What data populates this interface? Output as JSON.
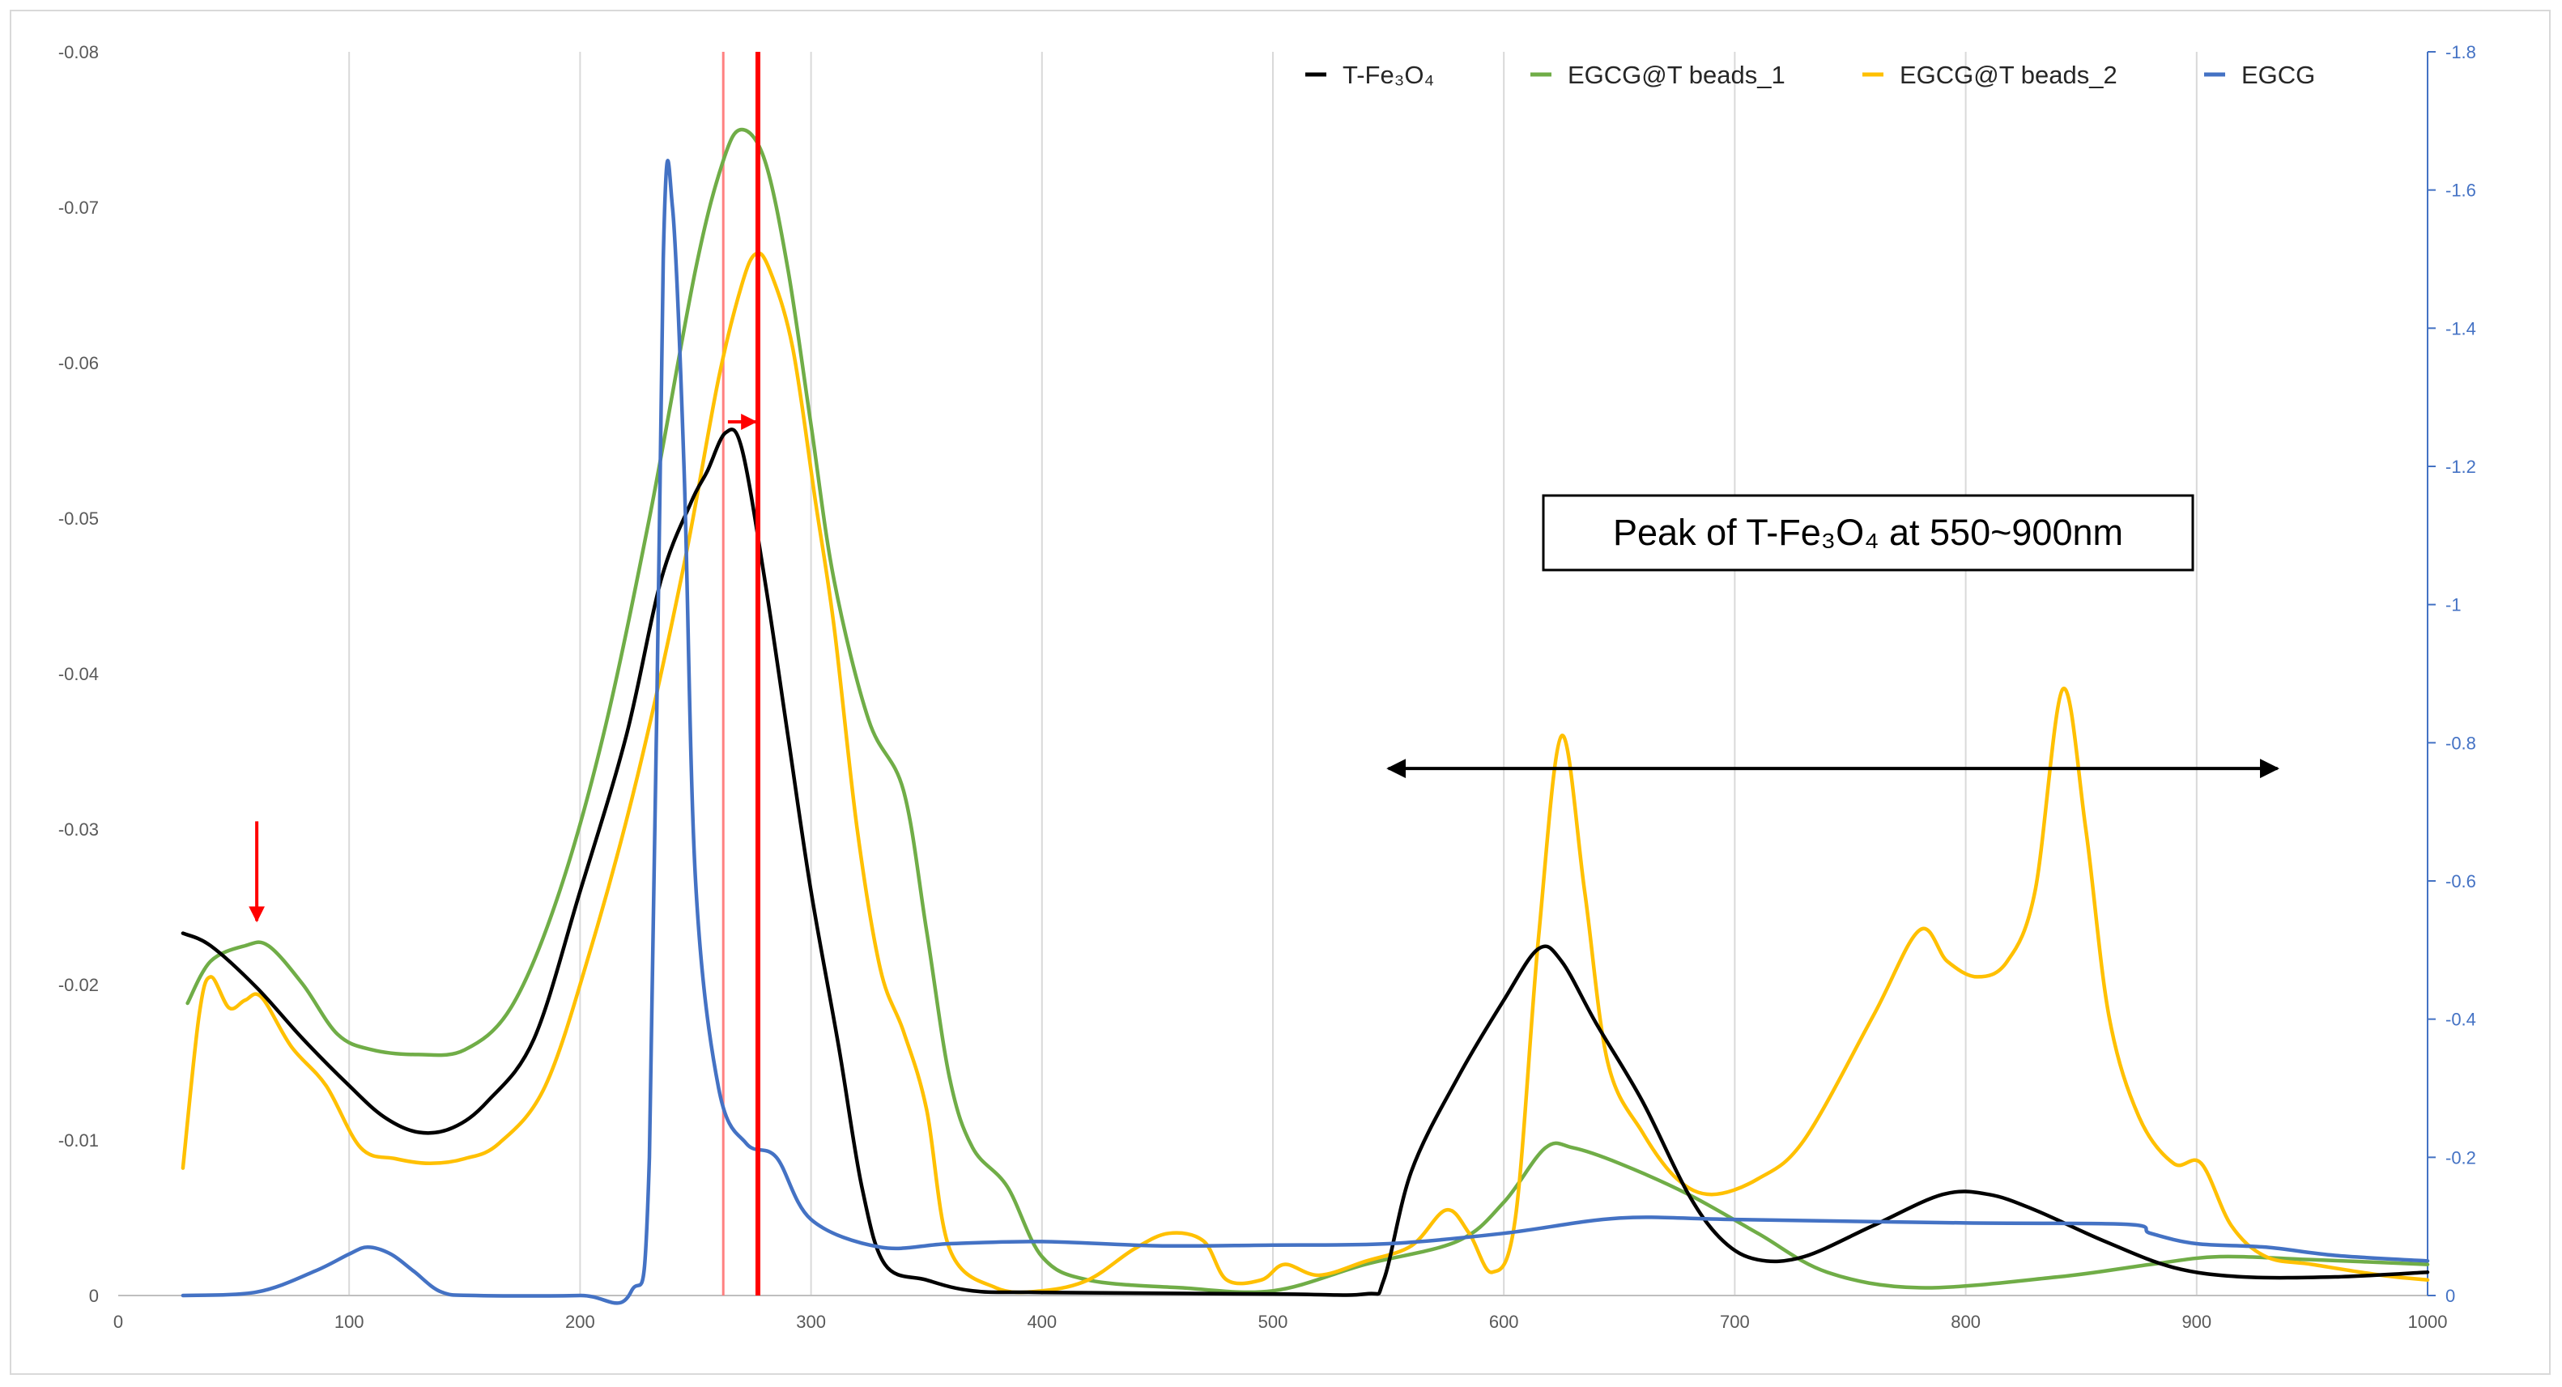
{
  "chart_data": {
    "type": "line",
    "x_axis": {
      "range": [
        0,
        1000
      ],
      "ticks": [
        0,
        100,
        200,
        300,
        400,
        500,
        600,
        700,
        800,
        900,
        1000
      ]
    },
    "y_axis_left": {
      "range": [
        0,
        -0.08
      ],
      "ticks": [
        0,
        -0.01,
        -0.02,
        -0.03,
        -0.04,
        -0.05,
        -0.06,
        -0.07,
        -0.08
      ],
      "tick_labels": [
        "0",
        "-0.01",
        "-0.02",
        "-0.03",
        "-0.04",
        "-0.05",
        "-0.06",
        "-0.07",
        "-0.08"
      ]
    },
    "y_axis_right": {
      "range": [
        0,
        -1.8
      ],
      "ticks": [
        0,
        -0.2,
        -0.4,
        -0.6,
        -0.8,
        -1,
        -1.2,
        -1.4,
        -1.6,
        -1.8
      ],
      "tick_labels": [
        "0",
        "-0.2",
        "-0.4",
        "-0.6",
        "-0.8",
        "-1",
        "-1.2",
        "-1.4",
        "-1.6",
        "-1.8"
      ],
      "color": "#4472c4"
    },
    "grid": "vertical",
    "legend_position": "top-right",
    "series": [
      {
        "name": "T-Fe₃O₄",
        "axis": "left",
        "color": "#000000",
        "points": [
          [
            28,
            -0.0233
          ],
          [
            40,
            -0.0225
          ],
          [
            60,
            -0.0198
          ],
          [
            80,
            -0.0165
          ],
          [
            100,
            -0.0135
          ],
          [
            115,
            -0.0115
          ],
          [
            130,
            -0.0105
          ],
          [
            145,
            -0.0108
          ],
          [
            160,
            -0.0125
          ],
          [
            180,
            -0.0165
          ],
          [
            200,
            -0.026
          ],
          [
            220,
            -0.036
          ],
          [
            235,
            -0.046
          ],
          [
            248,
            -0.051
          ],
          [
            255,
            -0.053
          ],
          [
            263,
            -0.0555
          ],
          [
            270,
            -0.0545
          ],
          [
            280,
            -0.046
          ],
          [
            290,
            -0.036
          ],
          [
            300,
            -0.026
          ],
          [
            312,
            -0.016
          ],
          [
            322,
            -0.007
          ],
          [
            332,
            -0.002
          ],
          [
            350,
            -0.001
          ],
          [
            370,
            -0.0003
          ],
          [
            400,
            -0.0002
          ],
          [
            500,
            -0.0001
          ],
          [
            540,
            -0.0001
          ],
          [
            548,
            -0.001
          ],
          [
            560,
            -0.008
          ],
          [
            580,
            -0.014
          ],
          [
            600,
            -0.019
          ],
          [
            615,
            -0.0223
          ],
          [
            625,
            -0.0215
          ],
          [
            640,
            -0.0175
          ],
          [
            660,
            -0.0125
          ],
          [
            680,
            -0.0065
          ],
          [
            695,
            -0.0035
          ],
          [
            710,
            -0.0023
          ],
          [
            730,
            -0.0025
          ],
          [
            760,
            -0.0045
          ],
          [
            790,
            -0.0065
          ],
          [
            810,
            -0.0065
          ],
          [
            830,
            -0.0055
          ],
          [
            860,
            -0.0035
          ],
          [
            890,
            -0.0018
          ],
          [
            920,
            -0.0012
          ],
          [
            960,
            -0.0012
          ],
          [
            1000,
            -0.0015
          ]
        ]
      },
      {
        "name": "EGCG@T beads_1",
        "axis": "left",
        "color": "#70ad47",
        "points": [
          [
            30,
            -0.0188
          ],
          [
            40,
            -0.0215
          ],
          [
            55,
            -0.0225
          ],
          [
            65,
            -0.0225
          ],
          [
            80,
            -0.02
          ],
          [
            95,
            -0.0168
          ],
          [
            110,
            -0.0158
          ],
          [
            130,
            -0.0155
          ],
          [
            150,
            -0.0158
          ],
          [
            170,
            -0.0185
          ],
          [
            190,
            -0.0255
          ],
          [
            210,
            -0.036
          ],
          [
            230,
            -0.05
          ],
          [
            250,
            -0.066
          ],
          [
            262,
            -0.073
          ],
          [
            270,
            -0.075
          ],
          [
            280,
            -0.073
          ],
          [
            290,
            -0.066
          ],
          [
            300,
            -0.056
          ],
          [
            310,
            -0.046
          ],
          [
            325,
            -0.037
          ],
          [
            340,
            -0.0325
          ],
          [
            350,
            -0.0235
          ],
          [
            360,
            -0.014
          ],
          [
            370,
            -0.0095
          ],
          [
            385,
            -0.007
          ],
          [
            400,
            -0.0025
          ],
          [
            420,
            -0.001
          ],
          [
            460,
            -0.0005
          ],
          [
            500,
            -0.0003
          ],
          [
            540,
            -0.002
          ],
          [
            580,
            -0.0035
          ],
          [
            600,
            -0.006
          ],
          [
            618,
            -0.0095
          ],
          [
            630,
            -0.0095
          ],
          [
            650,
            -0.0085
          ],
          [
            680,
            -0.0065
          ],
          [
            710,
            -0.004
          ],
          [
            740,
            -0.0015
          ],
          [
            780,
            -0.0005
          ],
          [
            840,
            -0.0012
          ],
          [
            880,
            -0.002
          ],
          [
            910,
            -0.0025
          ],
          [
            950,
            -0.0023
          ],
          [
            1000,
            -0.002
          ]
        ]
      },
      {
        "name": "EGCG@T beads_2",
        "axis": "left",
        "color": "#ffc000",
        "points": [
          [
            28,
            -0.0082
          ],
          [
            35,
            -0.018
          ],
          [
            40,
            -0.0205
          ],
          [
            48,
            -0.0185
          ],
          [
            55,
            -0.019
          ],
          [
            62,
            -0.0192
          ],
          [
            75,
            -0.016
          ],
          [
            90,
            -0.0135
          ],
          [
            105,
            -0.0095
          ],
          [
            120,
            -0.0088
          ],
          [
            135,
            -0.0085
          ],
          [
            150,
            -0.0088
          ],
          [
            165,
            -0.0098
          ],
          [
            185,
            -0.0135
          ],
          [
            205,
            -0.0225
          ],
          [
            225,
            -0.0335
          ],
          [
            245,
            -0.047
          ],
          [
            260,
            -0.059
          ],
          [
            270,
            -0.065
          ],
          [
            276,
            -0.067
          ],
          [
            282,
            -0.066
          ],
          [
            292,
            -0.061
          ],
          [
            302,
            -0.051
          ],
          [
            310,
            -0.043
          ],
          [
            320,
            -0.03
          ],
          [
            330,
            -0.021
          ],
          [
            340,
            -0.017
          ],
          [
            350,
            -0.012
          ],
          [
            360,
            -0.003
          ],
          [
            380,
            -0.0005
          ],
          [
            400,
            -0.0003
          ],
          [
            420,
            -0.001
          ],
          [
            440,
            -0.003
          ],
          [
            455,
            -0.004
          ],
          [
            470,
            -0.0035
          ],
          [
            480,
            -0.001
          ],
          [
            495,
            -0.001
          ],
          [
            505,
            -0.002
          ],
          [
            520,
            -0.0013
          ],
          [
            540,
            -0.0022
          ],
          [
            560,
            -0.0032
          ],
          [
            575,
            -0.0055
          ],
          [
            585,
            -0.004
          ],
          [
            595,
            -0.0015
          ],
          [
            605,
            -0.005
          ],
          [
            615,
            -0.023
          ],
          [
            625,
            -0.036
          ],
          [
            635,
            -0.026
          ],
          [
            645,
            -0.015
          ],
          [
            660,
            -0.0105
          ],
          [
            675,
            -0.0075
          ],
          [
            690,
            -0.0065
          ],
          [
            710,
            -0.0075
          ],
          [
            730,
            -0.01
          ],
          [
            760,
            -0.018
          ],
          [
            780,
            -0.0235
          ],
          [
            792,
            -0.0215
          ],
          [
            805,
            -0.0205
          ],
          [
            818,
            -0.0215
          ],
          [
            830,
            -0.026
          ],
          [
            842,
            -0.039
          ],
          [
            852,
            -0.03
          ],
          [
            862,
            -0.018
          ],
          [
            875,
            -0.0115
          ],
          [
            890,
            -0.0085
          ],
          [
            902,
            -0.0085
          ],
          [
            915,
            -0.0045
          ],
          [
            930,
            -0.0025
          ],
          [
            950,
            -0.002
          ],
          [
            980,
            -0.0013
          ],
          [
            1000,
            -0.001
          ]
        ]
      },
      {
        "name": "EGCG",
        "axis": "right",
        "color": "#4472c4",
        "points": [
          [
            28,
            0
          ],
          [
            60,
            -0.005
          ],
          [
            85,
            -0.035
          ],
          [
            100,
            -0.06
          ],
          [
            108,
            -0.07
          ],
          [
            118,
            -0.06
          ],
          [
            128,
            -0.035
          ],
          [
            140,
            -0.005
          ],
          [
            155,
            0
          ],
          [
            200,
            0
          ],
          [
            222,
            -0.005
          ],
          [
            230,
            -0.2
          ],
          [
            236,
            -1.5
          ],
          [
            240,
            -1.575
          ],
          [
            245,
            -1.2
          ],
          [
            250,
            -0.6
          ],
          [
            260,
            -0.3
          ],
          [
            272,
            -0.22
          ],
          [
            285,
            -0.2
          ],
          [
            300,
            -0.11
          ],
          [
            330,
            -0.07
          ],
          [
            360,
            -0.075
          ],
          [
            400,
            -0.078
          ],
          [
            450,
            -0.072
          ],
          [
            500,
            -0.073
          ],
          [
            550,
            -0.075
          ],
          [
            600,
            -0.09
          ],
          [
            650,
            -0.112
          ],
          [
            700,
            -0.11
          ],
          [
            800,
            -0.105
          ],
          [
            870,
            -0.103
          ],
          [
            880,
            -0.09
          ],
          [
            900,
            -0.075
          ],
          [
            930,
            -0.07
          ],
          [
            960,
            -0.058
          ],
          [
            1000,
            -0.05
          ]
        ]
      }
    ],
    "annotations": {
      "box_text": "Peak of T-Fe₃O₄ at 550~900nm",
      "double_arrow_x": [
        550,
        935
      ],
      "double_arrow_y": -0.0339,
      "down_arrow": {
        "x": 60,
        "y_from": -0.0305,
        "y_to": -0.0241,
        "color": "#ff0000"
      },
      "ref_line_thin": {
        "x": 262,
        "color": "#ff8080"
      },
      "ref_line_thick": {
        "x": 277,
        "color": "#ff0000"
      },
      "shift_arrow": {
        "x_from": 264,
        "x_to": 276,
        "y": -0.0562,
        "color": "#ff0000"
      }
    }
  }
}
